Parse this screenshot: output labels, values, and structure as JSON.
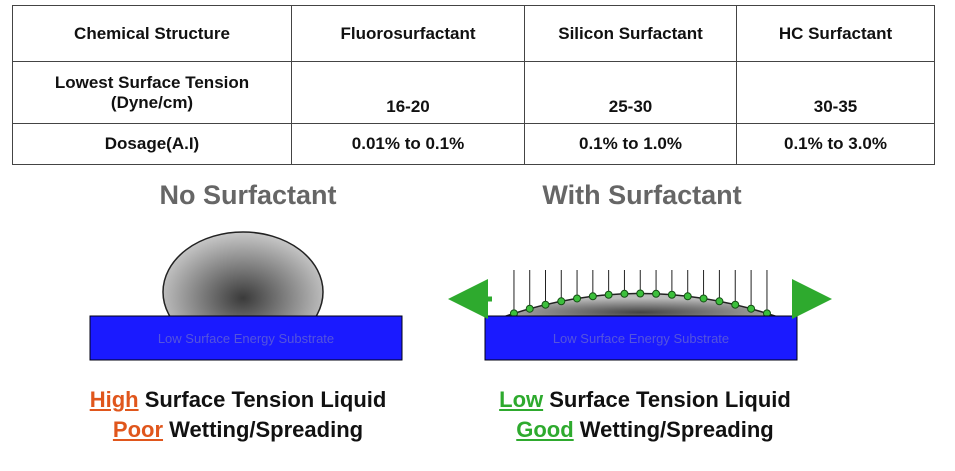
{
  "table": {
    "header": [
      "Chemical Structure",
      "Fluorosurfactant",
      "Silicon Surfactant",
      "HC Surfactant"
    ],
    "rows": [
      [
        [
          "Lowest Surface Tension",
          "(Dyne/cm)"
        ],
        "16-20",
        "25-30",
        "30-35"
      ],
      [
        "Dosage(A.I)",
        "0.01% to 0.1%",
        "0.1% to 1.0%",
        "0.1% to 3.0%"
      ]
    ]
  },
  "panels": [
    {
      "title": "No Surfactant",
      "substrate": "Low Surface Energy Substrate",
      "caption": [
        {
          "highlight": "High",
          "text": " Surface Tension Liquid"
        },
        {
          "highlight": "Poor",
          "text": " Wetting/Spreading"
        }
      ]
    },
    {
      "title": "With Surfactant",
      "substrate": "Low Surface Energy Substrate",
      "caption": [
        {
          "highlight": "Low",
          "text": " Surface Tension Liquid"
        },
        {
          "highlight": "Good",
          "text": " Wetting/Spreading"
        }
      ]
    }
  ]
}
